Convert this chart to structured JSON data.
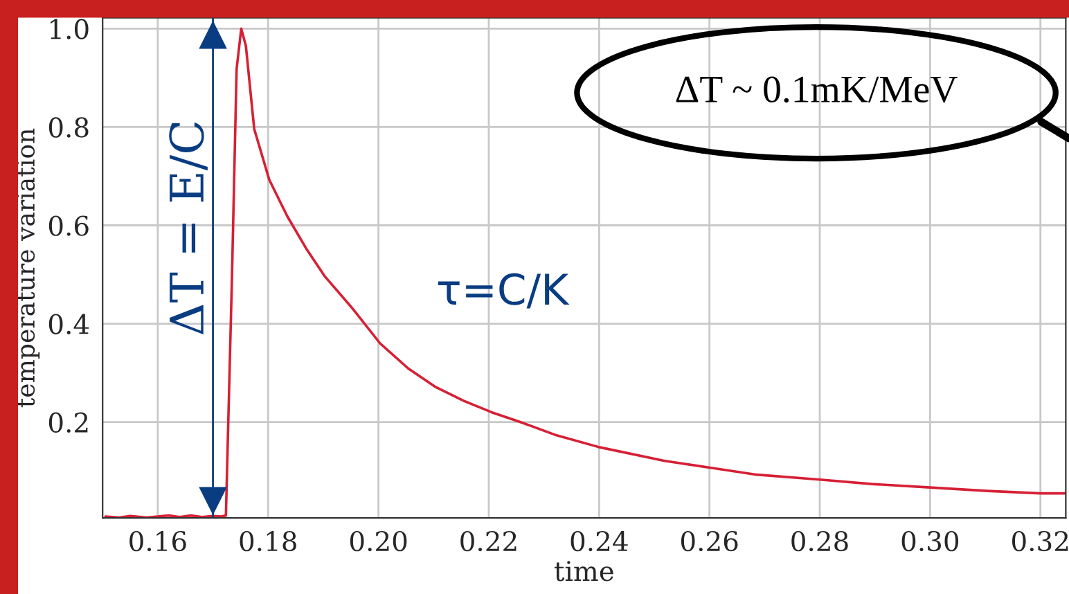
{
  "chart_data": {
    "type": "line",
    "xlabel": "time",
    "ylabel": "temperature variation",
    "annotations": [
      "τ=C/K",
      "ΔT ~ 0.1mK/MeV"
    ],
    "ref_lines": [
      {
        "axis": "x",
        "value": 0.17,
        "label": "ΔT = E/C",
        "color": "#0a3c82"
      }
    ],
    "x": [
      0.1505,
      0.153,
      0.155,
      0.158,
      0.16,
      0.162,
      0.164,
      0.166,
      0.168,
      0.17,
      0.1715,
      0.17235,
      0.17345,
      0.17429,
      0.17513,
      0.17597,
      0.17748,
      0.1802,
      0.1835,
      0.1869,
      0.1903,
      0.1953,
      0.2003,
      0.2054,
      0.2104,
      0.2155,
      0.2205,
      0.2255,
      0.2323,
      0.24,
      0.2519,
      0.2603,
      0.2686,
      0.28,
      0.2894,
      0.3,
      0.3104,
      0.32,
      0.3245
    ],
    "series": [
      {
        "color": "#d62035",
        "values": [
          0.008,
          0.006,
          0.009,
          0.006,
          0.008,
          0.01,
          0.007,
          0.01,
          0.007,
          0.009,
          0.008,
          0.01,
          0.496,
          0.918,
          1.0,
          0.965,
          0.796,
          0.693,
          0.618,
          0.553,
          0.496,
          0.431,
          0.36,
          0.309,
          0.271,
          0.243,
          0.22,
          0.201,
          0.173,
          0.149,
          0.121,
          0.107,
          0.093,
          0.083,
          0.074,
          0.067,
          0.06,
          0.055,
          0.055
        ]
      }
    ],
    "xlim": [
      0.15,
      0.3246
    ],
    "ylim": [
      0.005,
      1.022
    ],
    "xticks": [
      0.16,
      0.18,
      {
        "value": 0.2,
        "label": "0.20"
      },
      0.22,
      0.24,
      0.26,
      0.28,
      {
        "value": 0.3,
        "label": "0.30"
      },
      0.32
    ],
    "yticks": [
      0.2,
      0.4,
      0.6,
      0.8,
      {
        "value": 1.0,
        "label": "1.0"
      }
    ],
    "grid": true
  }
}
